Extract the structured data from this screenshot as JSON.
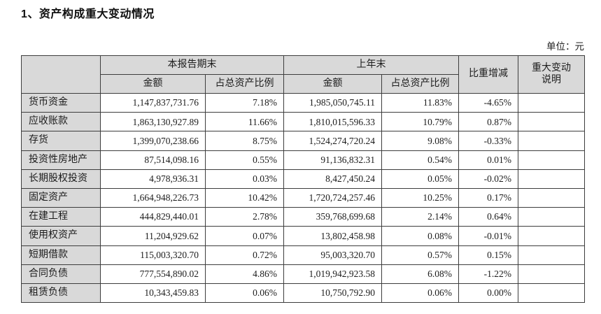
{
  "page": {
    "title": "1、资产构成重大变动情况",
    "unit_label": "单位：元"
  },
  "colors": {
    "header_background": "#d9d9d9",
    "border": "#3d3d3d",
    "text": "#1c1c1c",
    "page_background": "#ffffff"
  },
  "table": {
    "header": {
      "current_period": "本报告期末",
      "prior_period": "上年末",
      "amount": "金额",
      "ratio": "占总资产比例",
      "change": "比重增减",
      "explanation_line1": "重大变动",
      "explanation_line2": "说明"
    },
    "rows": [
      {
        "label": "货币资金",
        "cur_amount": "1,147,837,731.76",
        "cur_ratio": "7.18%",
        "prev_amount": "1,985,050,745.11",
        "prev_ratio": "11.83%",
        "change": "-4.65%",
        "note": ""
      },
      {
        "label": "应收账款",
        "cur_amount": "1,863,130,927.89",
        "cur_ratio": "11.66%",
        "prev_amount": "1,810,015,596.33",
        "prev_ratio": "10.79%",
        "change": "0.87%",
        "note": ""
      },
      {
        "label": "存货",
        "cur_amount": "1,399,070,238.66",
        "cur_ratio": "8.75%",
        "prev_amount": "1,524,274,720.24",
        "prev_ratio": "9.08%",
        "change": "-0.33%",
        "note": ""
      },
      {
        "label": "投资性房地产",
        "cur_amount": "87,514,098.16",
        "cur_ratio": "0.55%",
        "prev_amount": "91,136,832.31",
        "prev_ratio": "0.54%",
        "change": "0.01%",
        "note": ""
      },
      {
        "label": "长期股权投资",
        "cur_amount": "4,978,936.31",
        "cur_ratio": "0.03%",
        "prev_amount": "8,427,450.24",
        "prev_ratio": "0.05%",
        "change": "-0.02%",
        "note": ""
      },
      {
        "label": "固定资产",
        "cur_amount": "1,664,948,226.73",
        "cur_ratio": "10.42%",
        "prev_amount": "1,720,724,257.46",
        "prev_ratio": "10.25%",
        "change": "0.17%",
        "note": ""
      },
      {
        "label": "在建工程",
        "cur_amount": "444,829,440.01",
        "cur_ratio": "2.78%",
        "prev_amount": "359,768,699.68",
        "prev_ratio": "2.14%",
        "change": "0.64%",
        "note": ""
      },
      {
        "label": "使用权资产",
        "cur_amount": "11,204,929.62",
        "cur_ratio": "0.07%",
        "prev_amount": "13,802,458.98",
        "prev_ratio": "0.08%",
        "change": "-0.01%",
        "note": ""
      },
      {
        "label": "短期借款",
        "cur_amount": "115,003,320.70",
        "cur_ratio": "0.72%",
        "prev_amount": "95,003,320.70",
        "prev_ratio": "0.57%",
        "change": "0.15%",
        "note": ""
      },
      {
        "label": "合同负债",
        "cur_amount": "777,554,890.02",
        "cur_ratio": "4.86%",
        "prev_amount": "1,019,942,923.58",
        "prev_ratio": "6.08%",
        "change": "-1.22%",
        "note": ""
      },
      {
        "label": "租赁负债",
        "cur_amount": "10,343,459.83",
        "cur_ratio": "0.06%",
        "prev_amount": "10,750,792.90",
        "prev_ratio": "0.06%",
        "change": "0.00%",
        "note": ""
      }
    ]
  }
}
